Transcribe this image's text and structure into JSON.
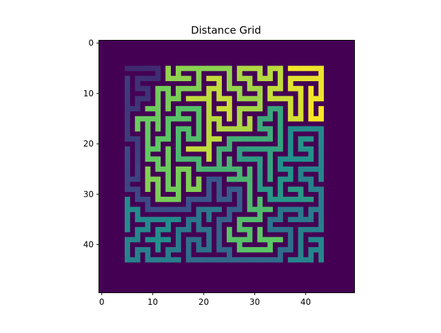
{
  "chart_data": {
    "type": "heatmap",
    "title": "Distance Grid",
    "xlabel": "",
    "ylabel": "",
    "colormap": "viridis",
    "grid_size": 50,
    "xlim": [
      -0.5,
      49.5
    ],
    "ylim": [
      49.5,
      -0.5
    ],
    "x_ticks": [
      0,
      10,
      20,
      30,
      40
    ],
    "y_ticks": [
      0,
      10,
      20,
      30,
      40
    ],
    "maze_region": {
      "col_min": 5,
      "col_max": 43,
      "row_min": 5,
      "row_max": 43
    },
    "value_range": [
      0,
      1
    ],
    "background_value": 0,
    "colors": {
      "min": "#440154",
      "low": "#3b528b",
      "mid": "#21918c",
      "high": "#5ec962",
      "max": "#fde725"
    }
  }
}
